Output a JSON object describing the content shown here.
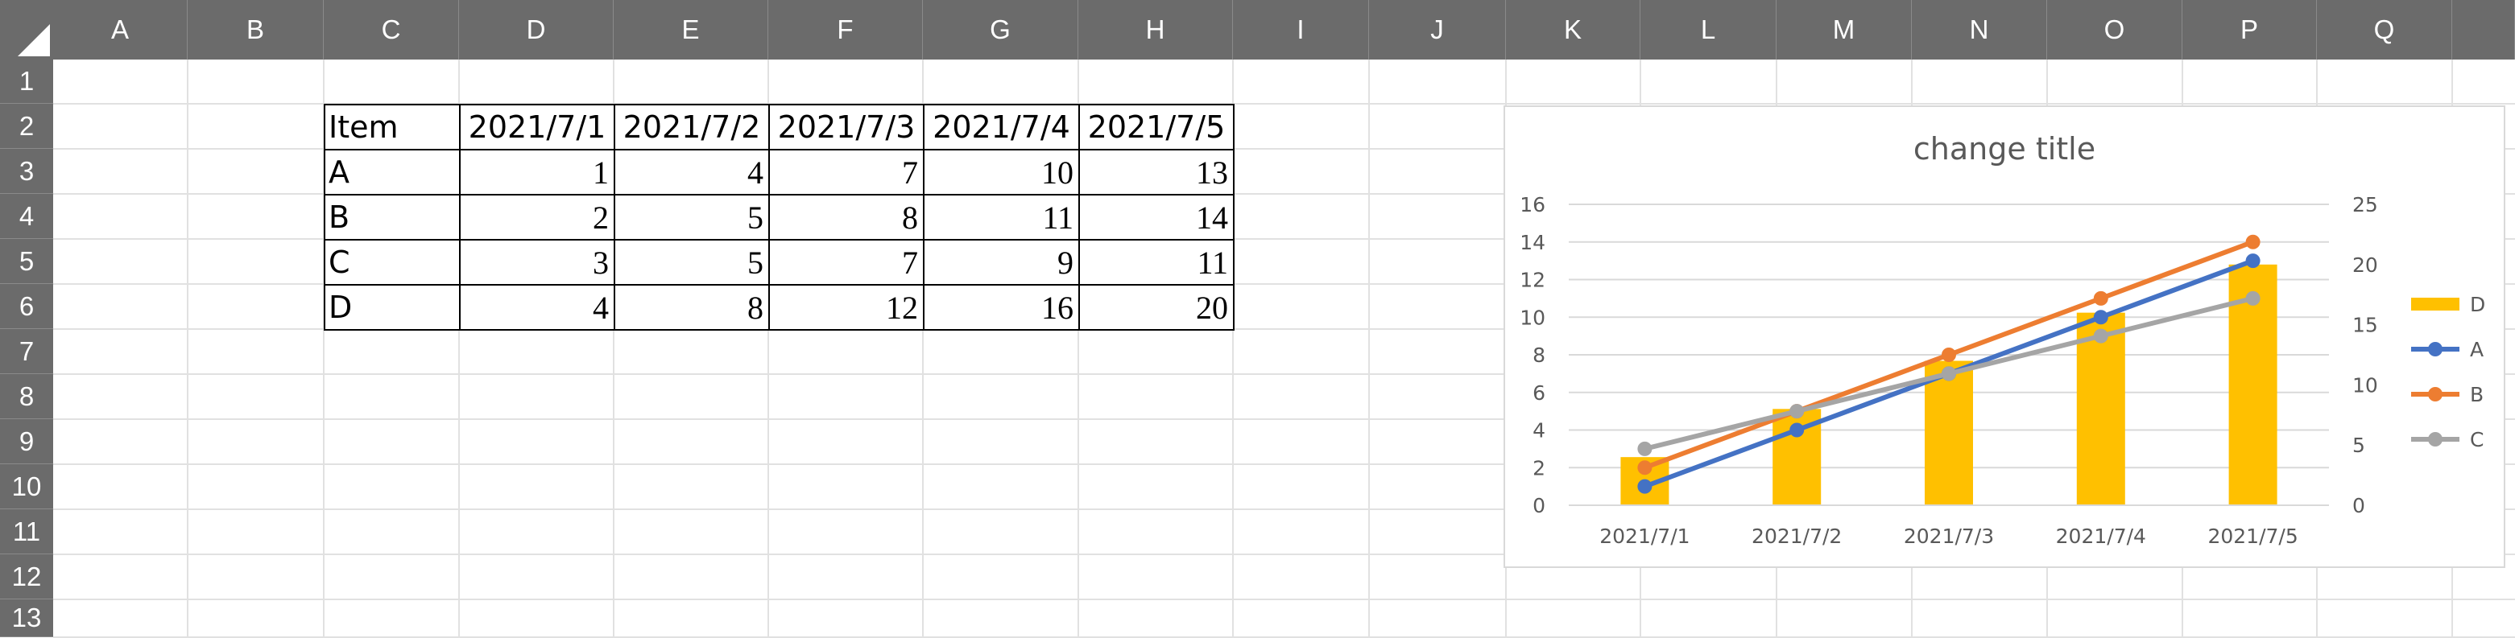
{
  "spreadsheet": {
    "columns": [
      "A",
      "B",
      "C",
      "D",
      "E",
      "F",
      "G",
      "H",
      "I",
      "J",
      "K",
      "L",
      "M",
      "N",
      "O",
      "P",
      "Q"
    ],
    "rows": [
      "1",
      "2",
      "3",
      "4",
      "5",
      "6",
      "7",
      "8",
      "9",
      "10",
      "11",
      "12",
      "13"
    ],
    "table": {
      "header": [
        "Item",
        "2021/7/1",
        "2021/7/2",
        "2021/7/3",
        "2021/7/4",
        "2021/7/5"
      ],
      "rows": [
        [
          "A",
          "1",
          "4",
          "7",
          "10",
          "13"
        ],
        [
          "B",
          "2",
          "5",
          "8",
          "11",
          "14"
        ],
        [
          "C",
          "3",
          "5",
          "7",
          "9",
          "11"
        ],
        [
          "D",
          "4",
          "8",
          "12",
          "16",
          "20"
        ]
      ]
    }
  },
  "colors": {
    "header_bg": "#6b6b6b",
    "header_text": "#ffffff",
    "gridline": "#e1e1e1",
    "series_D": "#ffc000",
    "series_A": "#4472c4",
    "series_B": "#ed7d31",
    "series_C": "#a5a5a5"
  },
  "chart_data": {
    "type": "bar+line",
    "title": "change title",
    "categories": [
      "2021/7/1",
      "2021/7/2",
      "2021/7/3",
      "2021/7/4",
      "2021/7/5"
    ],
    "left_axis": {
      "min": 0,
      "max": 16,
      "step": 2,
      "ticks": [
        "0",
        "2",
        "4",
        "6",
        "8",
        "10",
        "12",
        "14",
        "16"
      ]
    },
    "right_axis": {
      "min": 0,
      "max": 25,
      "step": 5,
      "ticks": [
        "0",
        "5",
        "10",
        "15",
        "20",
        "25"
      ]
    },
    "gridlines": true,
    "legend_position": "right",
    "series": [
      {
        "name": "D",
        "kind": "bar",
        "axis": "right",
        "color": "#ffc000",
        "values": [
          4,
          8,
          12,
          16,
          20
        ]
      },
      {
        "name": "A",
        "kind": "line",
        "axis": "left",
        "color": "#4472c4",
        "values": [
          1,
          4,
          7,
          10,
          13
        ]
      },
      {
        "name": "B",
        "kind": "line",
        "axis": "left",
        "color": "#ed7d31",
        "values": [
          2,
          5,
          8,
          11,
          14
        ]
      },
      {
        "name": "C",
        "kind": "line",
        "axis": "left",
        "color": "#a5a5a5",
        "values": [
          3,
          5,
          7,
          9,
          11
        ]
      }
    ]
  }
}
